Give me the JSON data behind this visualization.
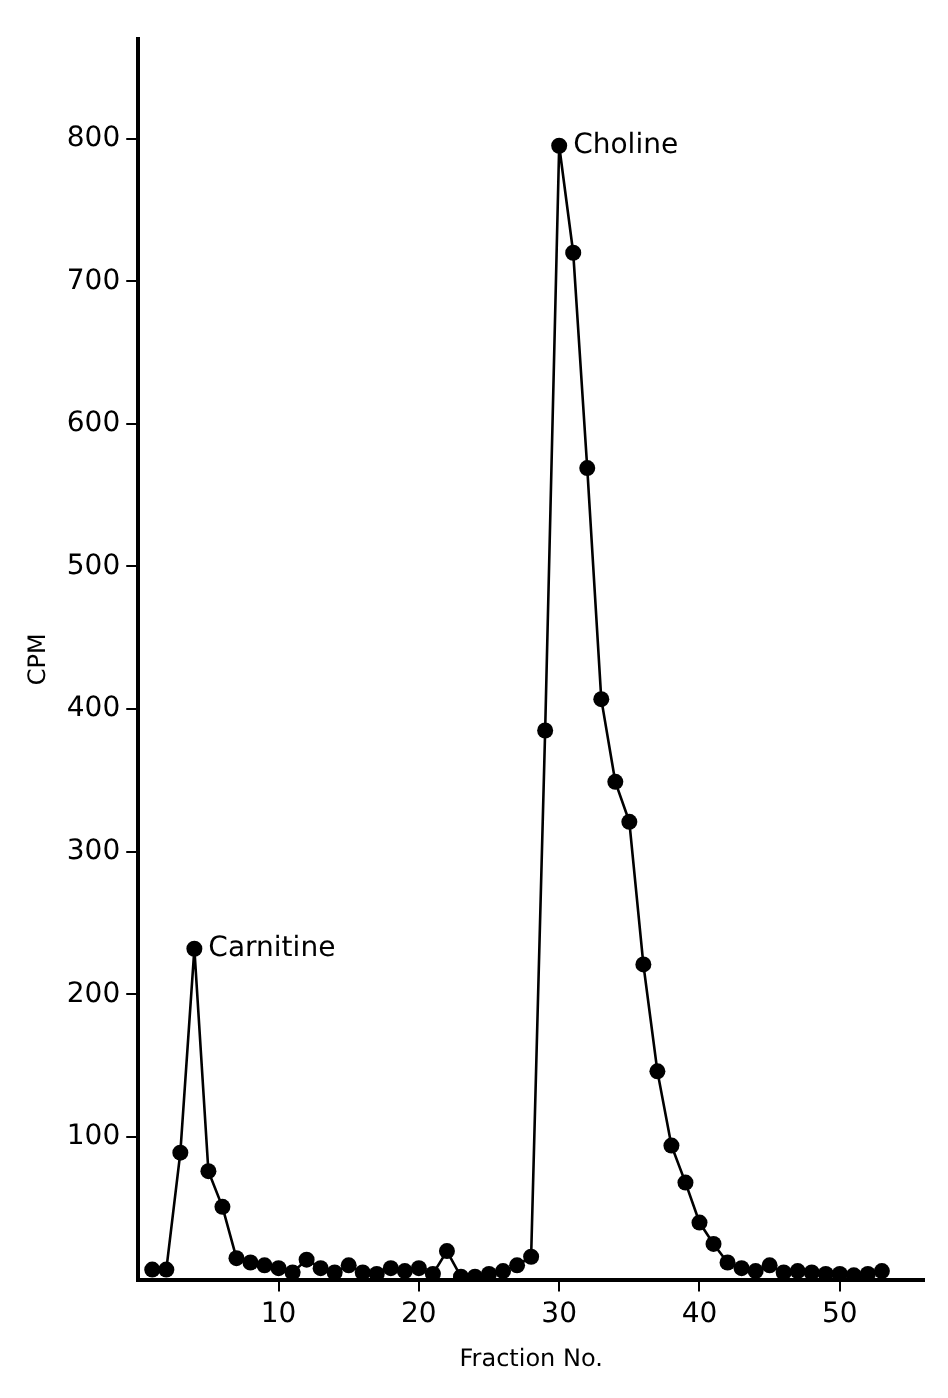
{
  "chart_data": {
    "type": "line",
    "xlabel": "Fraction No.",
    "ylabel": "CPM",
    "x": [
      1,
      2,
      3,
      4,
      5,
      6,
      7,
      8,
      9,
      10,
      11,
      12,
      13,
      14,
      15,
      16,
      17,
      18,
      19,
      20,
      21,
      22,
      23,
      24,
      25,
      26,
      27,
      28,
      29,
      30,
      31,
      32,
      33,
      34,
      35,
      36,
      37,
      38,
      39,
      40,
      41,
      42,
      43,
      44,
      45,
      46,
      47,
      48,
      49,
      50,
      51,
      52,
      53
    ],
    "series": [
      {
        "color": "#000000",
        "values": [
          7,
          7,
          89,
          232,
          76,
          51,
          15,
          12,
          10,
          8,
          5,
          14,
          8,
          5,
          10,
          5,
          4,
          8,
          6,
          8,
          4,
          20,
          2,
          2,
          4,
          6,
          10,
          16,
          385,
          795,
          720,
          569,
          407,
          349,
          321,
          221,
          146,
          94,
          68,
          40,
          25,
          12,
          8,
          6,
          10,
          5,
          6,
          5,
          4,
          4,
          3,
          4,
          6
        ]
      }
    ],
    "xlim": [
      0,
      56
    ],
    "xticks": [
      10,
      20,
      30,
      40,
      50
    ],
    "ylim": [
      0,
      870
    ],
    "yticks": [
      100,
      200,
      300,
      400,
      500,
      600,
      700,
      800
    ],
    "grid": false,
    "legend": false,
    "marker": "circle",
    "line_style": "solid",
    "annotations": [
      {
        "text": "Carnitine",
        "x": 4,
        "y": 232
      },
      {
        "text": "Choline",
        "x": 30,
        "y": 795
      }
    ]
  }
}
